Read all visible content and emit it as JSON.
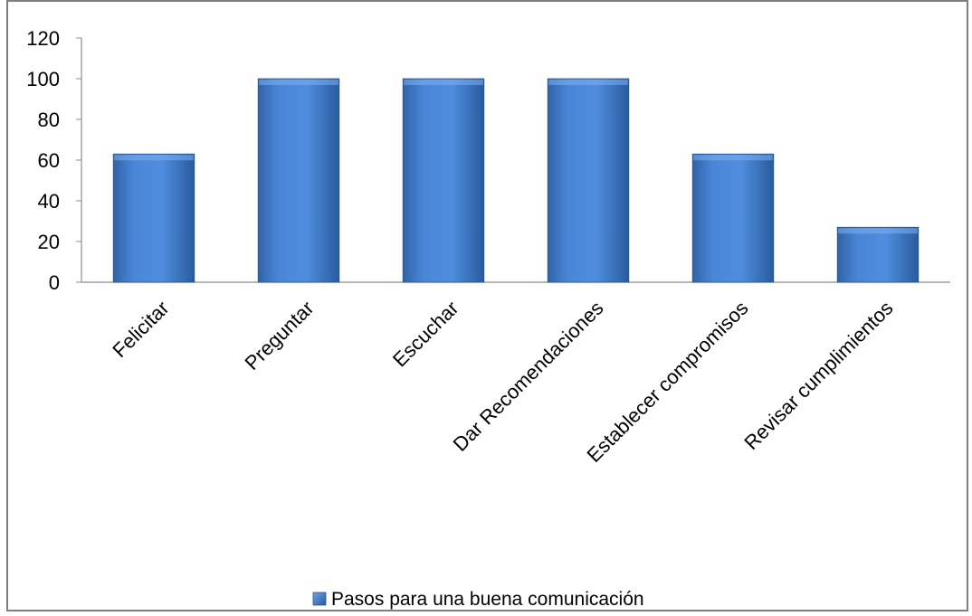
{
  "chart_data": {
    "type": "bar",
    "categories": [
      "Felicitar",
      "Preguntar",
      "Escuchar",
      "Dar Recomendaciones",
      "Establecer compromisos",
      "Revisar cumplimientos"
    ],
    "series": [
      {
        "name": "Pasos para una buena comunicación",
        "values": [
          63,
          100,
          100,
          100,
          63,
          27
        ],
        "color": "#4a86d6"
      }
    ],
    "ylim": [
      0,
      120
    ],
    "yticks": [
      0,
      20,
      40,
      60,
      80,
      100,
      120
    ],
    "grid": false,
    "legend": "bottom"
  }
}
